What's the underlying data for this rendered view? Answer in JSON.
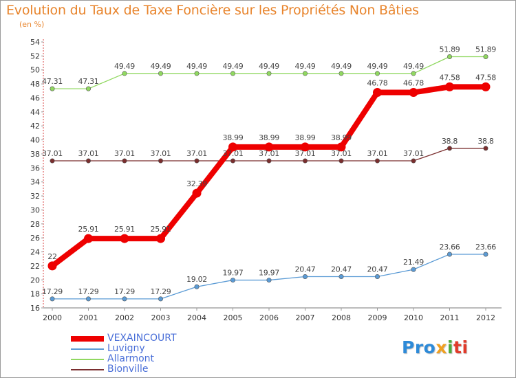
{
  "chart_data": {
    "type": "line",
    "title": "Evolution du Taux de Taxe Foncière sur les Propriétés Non Bâties",
    "ylabel": "(en %)",
    "xlabel": "",
    "x": [
      "2000",
      "2001",
      "2002",
      "2003",
      "2004",
      "2005",
      "2006",
      "2007",
      "2008",
      "2009",
      "2010",
      "2011",
      "2012"
    ],
    "ylim": [
      16,
      54
    ],
    "ytick_step": 2,
    "grid": false,
    "series": [
      {
        "name": "VEXAINCOURT",
        "color": "#ee0000",
        "values": [
          22,
          25.91,
          25.91,
          25.91,
          32.39,
          38.99,
          38.99,
          38.99,
          38.99,
          46.78,
          46.78,
          47.58,
          47.58
        ],
        "labels": [
          "22",
          "25.91",
          "25.91",
          "25.91",
          "32.39",
          "38.99",
          "38.99",
          "38.99",
          "38.99",
          "46.78",
          "46.78",
          "47.58",
          "47.58"
        ]
      },
      {
        "name": "Luvigny",
        "color": "#5b9bd5",
        "values": [
          17.29,
          17.29,
          17.29,
          17.29,
          19.02,
          19.97,
          19.97,
          20.47,
          20.47,
          20.47,
          21.49,
          23.66,
          23.66
        ],
        "labels": [
          "17.29",
          "17.29",
          "17.29",
          "17.29",
          "19.02",
          "19.97",
          "19.97",
          "20.47",
          "20.47",
          "20.47",
          "21.49",
          "23.66",
          "23.66"
        ]
      },
      {
        "name": "Allarmont",
        "color": "#90d860",
        "values": [
          47.31,
          47.31,
          49.49,
          49.49,
          49.49,
          49.49,
          49.49,
          49.49,
          49.49,
          49.49,
          49.49,
          51.89,
          51.89
        ],
        "labels": [
          "47.31",
          "47.31",
          "49.49",
          "49.49",
          "49.49",
          "49.49",
          "49.49",
          "49.49",
          "49.49",
          "49.49",
          "49.49",
          "51.89",
          "51.89"
        ]
      },
      {
        "name": "Bionville",
        "color": "#7a2e2e",
        "values": [
          37.01,
          37.01,
          37.01,
          37.01,
          37.01,
          37.01,
          37.01,
          37.01,
          37.01,
          37.01,
          37.01,
          38.8,
          38.8
        ],
        "labels": [
          "37.01",
          "37.01",
          "37.01",
          "37.01",
          "37.01",
          "37.01",
          "37.01",
          "37.01",
          "37.01",
          "37.01",
          "37.01",
          "38.8",
          "38.8"
        ]
      }
    ],
    "legend_position": "bottom-left"
  },
  "brand": {
    "name": "Proxiti",
    "parts": [
      "Pro",
      "x",
      "i",
      "ti"
    ]
  }
}
